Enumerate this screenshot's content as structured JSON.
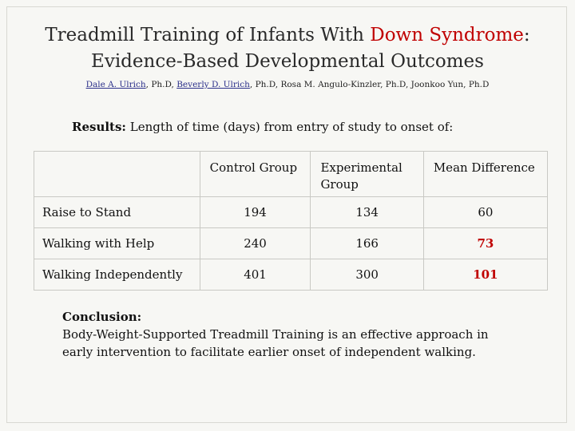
{
  "title": {
    "line1_pre": "Treadmill Training of Infants With ",
    "line1_accent": "Down Syndrome",
    "line1_post": ":",
    "line2": "Evidence-Based Developmental Outcomes"
  },
  "authors": {
    "a1": "Dale A. Ulrich",
    "s1": ", Ph.D, ",
    "a2": "Beverly D. Ulrich",
    "s2": ", Ph.D, Rosa M. Angulo-Kinzler, Ph.D, Joonkoo Yun, Ph.D"
  },
  "results": {
    "label": "Results:",
    "text": " Length of time (days) from entry of study to onset of:"
  },
  "table": {
    "headers": [
      "",
      "Control Group",
      "Experimental Group",
      "Mean Difference"
    ],
    "rows": [
      {
        "label": "Raise to Stand",
        "control": "194",
        "experimental": "134",
        "difference": "60"
      },
      {
        "label": "Walking with Help",
        "control": "240",
        "experimental": "166",
        "difference": "73"
      },
      {
        "label": "Walking Independently",
        "control": "401",
        "experimental": "300",
        "difference": "101"
      }
    ]
  },
  "conclusion": {
    "heading": "Conclusion:",
    "line1": "Body-Weight-Supported Treadmill Training is an effective approach in",
    "line2": "early intervention to facilitate earlier onset of independent walking."
  },
  "colors": {
    "accent": "#c00000",
    "link": "#2b2f8a"
  }
}
